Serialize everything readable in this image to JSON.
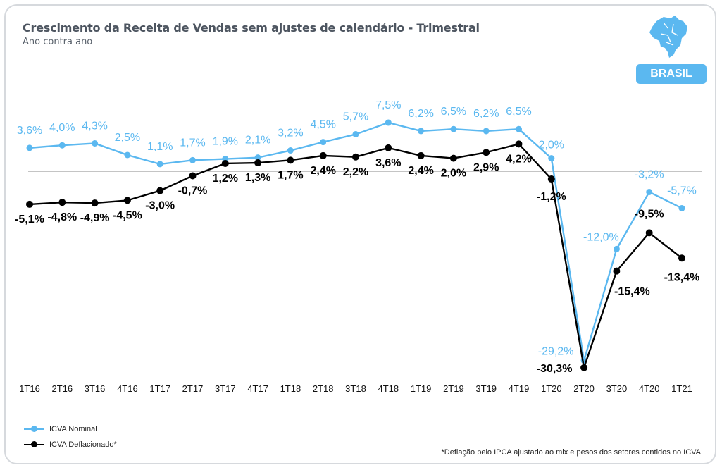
{
  "header": {
    "title": "Crescimento da Receita de Vendas sem ajustes de calendário - Trimestral",
    "subtitle": "Ano contra ano",
    "region_badge": "BRASIL",
    "map_icon": "brazil-map-icon"
  },
  "footnote": "*Deflação pelo IPCA ajustado ao mix e pesos dos setores contidos no ICVA",
  "colors": {
    "nominal": "#5bb8f0",
    "deflated": "#000000",
    "zero_line": "#8a8a8a",
    "badge": "#5bb8f0"
  },
  "chart_data": {
    "type": "line",
    "categories": [
      "1T16",
      "2T16",
      "3T16",
      "4T16",
      "1T17",
      "2T17",
      "3T17",
      "4T17",
      "1T18",
      "2T18",
      "3T18",
      "4T18",
      "1T19",
      "2T19",
      "3T19",
      "4T19",
      "1T20",
      "2T20",
      "3T20",
      "4T20",
      "1T21"
    ],
    "series": [
      {
        "name": "ICVA Nominal",
        "values": [
          3.6,
          4.0,
          4.3,
          2.5,
          1.1,
          1.7,
          1.9,
          2.1,
          3.2,
          4.5,
          5.7,
          7.5,
          6.2,
          6.5,
          6.2,
          6.5,
          2.0,
          -29.2,
          -12.0,
          -3.2,
          -5.7
        ],
        "labels": [
          "3,6%",
          "4,0%",
          "4,3%",
          "2,5%",
          "1,1%",
          "1,7%",
          "1,9%",
          "2,1%",
          "3,2%",
          "4,5%",
          "5,7%",
          "7,5%",
          "6,2%",
          "6,5%",
          "6,2%",
          "6,5%",
          "2,0%",
          "-29,2%",
          "-12,0%",
          "-3,2%",
          "-5,7%"
        ]
      },
      {
        "name": "ICVA Deflacionado*",
        "values": [
          -5.1,
          -4.8,
          -4.9,
          -4.5,
          -3.0,
          -0.7,
          1.2,
          1.3,
          1.7,
          2.4,
          2.2,
          3.6,
          2.4,
          2.0,
          2.9,
          4.2,
          -1.2,
          -30.3,
          -15.4,
          -9.5,
          -13.4
        ],
        "labels": [
          "-5,1%",
          "-4,8%",
          "-4,9%",
          "-4,5%",
          "-3,0%",
          "-0,7%",
          "1,2%",
          "1,3%",
          "1,7%",
          "2,4%",
          "2,2%",
          "3,6%",
          "2,4%",
          "2,0%",
          "2,9%",
          "4,2%",
          "-1,2%",
          "-30,3%",
          "-15,4%",
          "-9,5%",
          "-13,4%"
        ]
      }
    ],
    "zero_line": true,
    "legend_position": "bottom-left",
    "grid": false
  }
}
